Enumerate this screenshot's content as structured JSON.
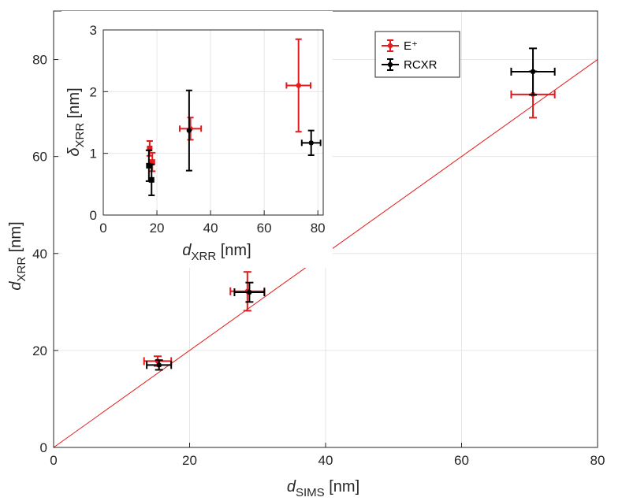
{
  "chart_data": [
    {
      "type": "scatter",
      "title": "",
      "xlabel": {
        "var": "d",
        "sub": "SIMS",
        "unit": " [nm]"
      },
      "ylabel": {
        "var": "d",
        "sub": "XRR",
        "unit": " [nm]"
      },
      "xlim": [
        0,
        80
      ],
      "ylim": [
        0,
        90
      ],
      "xticks": [
        0,
        20,
        40,
        60,
        80
      ],
      "yticks": [
        0,
        20,
        40,
        60,
        80
      ],
      "grid": true,
      "reference_line": {
        "x": [
          0,
          80
        ],
        "y": [
          0,
          80
        ],
        "color": "#e41a1c"
      },
      "legend": {
        "placement": "top-right-inside"
      },
      "series": [
        {
          "name": "E⁺",
          "color": "#e41a1c",
          "points": [
            {
              "x": 15.3,
              "y": 17.8,
              "xerr": 2.0,
              "yerr": 1.0
            },
            {
              "x": 28.5,
              "y": 32.2,
              "xerr": 2.5,
              "yerr": 4.0
            },
            {
              "x": 70.5,
              "y": 72.8,
              "xerr": 3.2,
              "yerr": 4.8
            }
          ]
        },
        {
          "name": "RCXR",
          "color": "#000000",
          "points": [
            {
              "x": 15.5,
              "y": 17.0,
              "xerr": 1.8,
              "yerr": 1.0
            },
            {
              "x": 28.8,
              "y": 32.0,
              "xerr": 2.2,
              "yerr": 2.0
            },
            {
              "x": 70.5,
              "y": 77.5,
              "xerr": 3.2,
              "yerr": 4.8
            }
          ]
        }
      ]
    },
    {
      "type": "scatter",
      "title": "",
      "xlabel": {
        "var": "d",
        "sub": "XRR",
        "unit": " [nm]"
      },
      "ylabel": {
        "var": "δ",
        "sub": "XRR",
        "unit": " [nm]"
      },
      "xlim": [
        0,
        82
      ],
      "ylim": [
        0,
        3
      ],
      "xticks": [
        0,
        20,
        40,
        60,
        80
      ],
      "yticks": [
        0,
        1,
        2,
        3
      ],
      "grid": true,
      "series": [
        {
          "name": "E⁺",
          "color": "#e41a1c",
          "points": [
            {
              "x": 17.3,
              "y": 1.08,
              "xerr": 0.0,
              "yerr": 0.12
            },
            {
              "x": 18.3,
              "y": 0.86,
              "xerr": 0.0,
              "yerr": 0.15
            },
            {
              "x": 32.5,
              "y": 1.4,
              "xerr": 4.0,
              "yerr": 0.18
            },
            {
              "x": 72.8,
              "y": 2.1,
              "xerr": 4.5,
              "yerr": 0.75
            }
          ],
          "marker": "circle",
          "extra_squares": [
            {
              "x": 17.3,
              "y": 1.08
            },
            {
              "x": 18.3,
              "y": 0.86
            }
          ]
        },
        {
          "name": "RCXR",
          "color": "#000000",
          "points": [
            {
              "x": 17.0,
              "y": 0.8,
              "xerr": 0.0,
              "yerr": 0.25
            },
            {
              "x": 18.0,
              "y": 0.57,
              "xerr": 0.0,
              "yerr": 0.25
            },
            {
              "x": 32.0,
              "y": 1.37,
              "xerr": 0.0,
              "yerr": 0.65
            },
            {
              "x": 77.5,
              "y": 1.17,
              "xerr": 3.5,
              "yerr": 0.2
            }
          ],
          "marker": "circle",
          "extra_squares": [
            {
              "x": 17.0,
              "y": 0.8
            },
            {
              "x": 18.0,
              "y": 0.57
            }
          ]
        }
      ]
    }
  ]
}
